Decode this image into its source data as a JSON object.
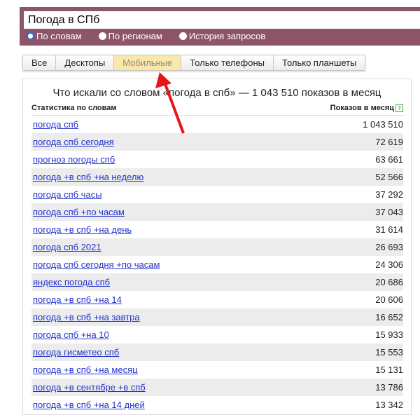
{
  "search": {
    "value": "Погода в СПб"
  },
  "modes": [
    {
      "label": "По словам",
      "selected": true
    },
    {
      "label": "По регионам",
      "selected": false
    },
    {
      "label": "История запросов",
      "selected": false
    }
  ],
  "tabs": [
    {
      "label": "Все"
    },
    {
      "label": "Десктопы"
    },
    {
      "label": "Мобильные",
      "active": true
    },
    {
      "label": "Только телефоны"
    },
    {
      "label": "Только планшеты"
    }
  ],
  "panel": {
    "title": "Что искали со словом «погода в спб» — 1 043 510 показов в месяц",
    "col_left": "Статистика по словам",
    "col_right": "Показов в месяц",
    "help": "?"
  },
  "rows": [
    {
      "q": "погода спб",
      "n": "1 043 510"
    },
    {
      "q": "погода спб сегодня",
      "n": "72 619"
    },
    {
      "q": "прогноз погоды спб",
      "n": "63 661"
    },
    {
      "q": "погода +в спб +на неделю",
      "n": "52 566"
    },
    {
      "q": "погода спб часы",
      "n": "37 292"
    },
    {
      "q": "погода спб +по часам",
      "n": "37 043"
    },
    {
      "q": "погода +в спб +на день",
      "n": "31 614"
    },
    {
      "q": "погода спб 2021",
      "n": "26 693"
    },
    {
      "q": "погода спб сегодня +по часам",
      "n": "24 306"
    },
    {
      "q": "яндекс погода спб",
      "n": "20 686"
    },
    {
      "q": "погода +в спб +на 14",
      "n": "20 606"
    },
    {
      "q": "погода +в спб +на завтра",
      "n": "16 652"
    },
    {
      "q": "погода спб +на 10",
      "n": "15 933"
    },
    {
      "q": "погода гисметео спб",
      "n": "15 553"
    },
    {
      "q": "погода +в спб +на месяц",
      "n": "15 131"
    },
    {
      "q": "погода +в сентябре +в спб",
      "n": "13 786"
    },
    {
      "q": "погода +в спб +на 14 дней",
      "n": "13 342"
    }
  ],
  "colors": {
    "header": "#8e5469",
    "active_tab": "#fbe8a8",
    "link": "#2233cc",
    "arrow": "#e8141c"
  }
}
